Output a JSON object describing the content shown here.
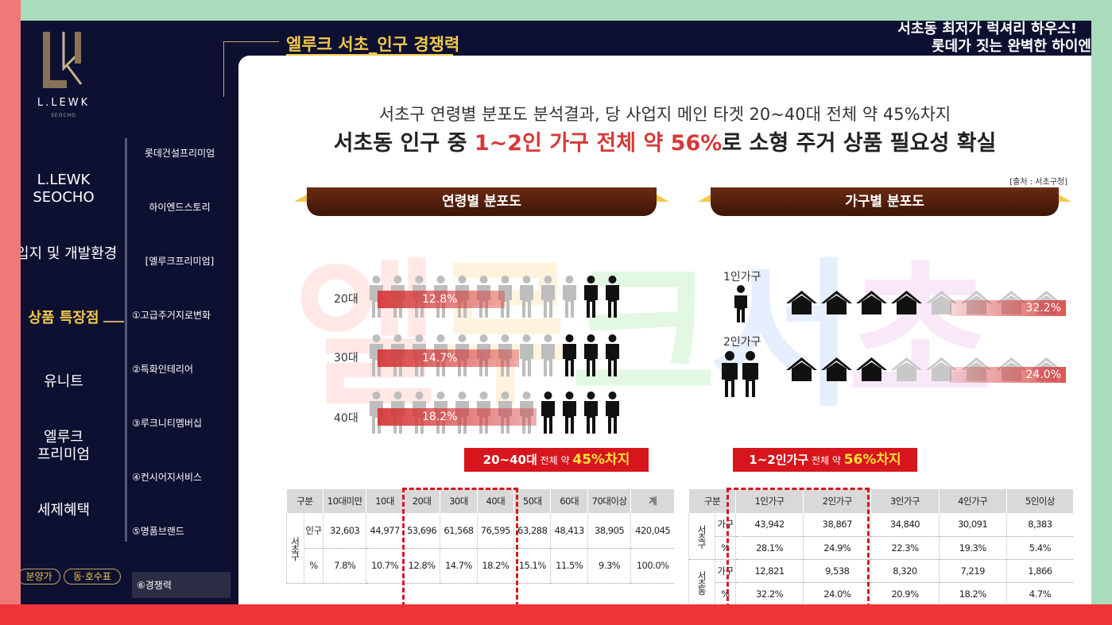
{
  "brand": {
    "name": "L.LEWK",
    "sub": "SEOCHO"
  },
  "nav_main": [
    {
      "label_line1": "L.LEWK",
      "label_line2": "SEOCHO"
    },
    {
      "label_line1": "입지 및 개발환경",
      "label_line2": ""
    },
    {
      "label_line1": "상품 특장점",
      "label_line2": ""
    },
    {
      "label_line1": "유니트",
      "label_line2": ""
    },
    {
      "label_line1": "엘루크",
      "label_line2": "프리미엄"
    },
    {
      "label_line1": "세제혜택",
      "label_line2": ""
    }
  ],
  "nav_sub": [
    "롯데건설프리미엄",
    "하이엔드스토리",
    "[엘루크프리미엄]",
    "①고급주거지로변화",
    "②특화인테리어",
    "③루크니티멤버십",
    "④컨시어지서비스",
    "⑤명품브랜드",
    "⑥경쟁력"
  ],
  "pills": [
    "분양가",
    "동·호수표"
  ],
  "header": {
    "title": "엘루크 서초_인구 경쟁력",
    "right_line1": "서초동 최저가 럭셔리 하우스!",
    "right_line2": "롯데가 짓는 완벽한 하이엔"
  },
  "headline": {
    "line1": "서초구 연령별 분포도 분석결과, 당 사업지 메인 타겟 20~40대 전체 약 45%차지",
    "line2_pre": "서초동 인구 중 ",
    "line2_hl": "1~2인 가구 전체 약 56%",
    "line2_post": "로 소형 주거 상품 필요성 확실"
  },
  "source": "[출처 : 서초구청]",
  "watermark": [
    "엘",
    "루",
    "크",
    "서",
    "초"
  ],
  "ribbons": {
    "age": "연령별 분포도",
    "household": "가구별 분포도"
  },
  "age_rows": [
    {
      "label": "20대",
      "pct": "12.8%",
      "highlighted": 2
    },
    {
      "label": "30대",
      "pct": "14.7%",
      "highlighted": 3
    },
    {
      "label": "40대",
      "pct": "18.2%",
      "highlighted": 4
    }
  ],
  "household_rows": [
    {
      "label": "1인가구",
      "pct": "32.2%",
      "filled": 4
    },
    {
      "label": "2인가구",
      "pct": "24.0%",
      "filled": 3
    }
  ],
  "summaries": {
    "age": {
      "pre": "20~40대",
      "mid": " 전체 약 ",
      "hl": "45%차지"
    },
    "household": {
      "pre": "1~2인가구",
      "mid": " 전체 약 ",
      "hl": "56%차지"
    }
  },
  "age_table": {
    "headers": [
      "구분",
      "10대미만",
      "10대",
      "20대",
      "30대",
      "40대",
      "50대",
      "60대",
      "70대이상",
      "계"
    ],
    "region": "서초구",
    "row_labels": [
      "인구",
      "%"
    ],
    "rows": [
      [
        "32,603",
        "44,977",
        "53,696",
        "61,568",
        "76,595",
        "63,288",
        "48,413",
        "38,905",
        "420,045"
      ],
      [
        "7.8%",
        "10.7%",
        "12.8%",
        "14.7%",
        "18.2%",
        "15.1%",
        "11.5%",
        "9.3%",
        "100.0%"
      ]
    ]
  },
  "household_table": {
    "headers": [
      "구분",
      "1인가구",
      "2인가구",
      "3인가구",
      "4인가구",
      "5인이상"
    ],
    "groups": [
      {
        "region": "서초구",
        "rows": [
          {
            "label": "가구",
            "values": [
              "43,942",
              "38,867",
              "34,840",
              "30,091",
              "8,383"
            ]
          },
          {
            "label": "%",
            "values": [
              "28.1%",
              "24.9%",
              "22.3%",
              "19.3%",
              "5.4%"
            ]
          }
        ]
      },
      {
        "region": "서초동",
        "rows": [
          {
            "label": "가구",
            "values": [
              "12,821",
              "9,538",
              "8,320",
              "7,219",
              "1,866"
            ]
          },
          {
            "label": "%",
            "values": [
              "32.2%",
              "24.0%",
              "20.9%",
              "18.2%",
              "4.7%"
            ]
          }
        ]
      }
    ]
  }
}
